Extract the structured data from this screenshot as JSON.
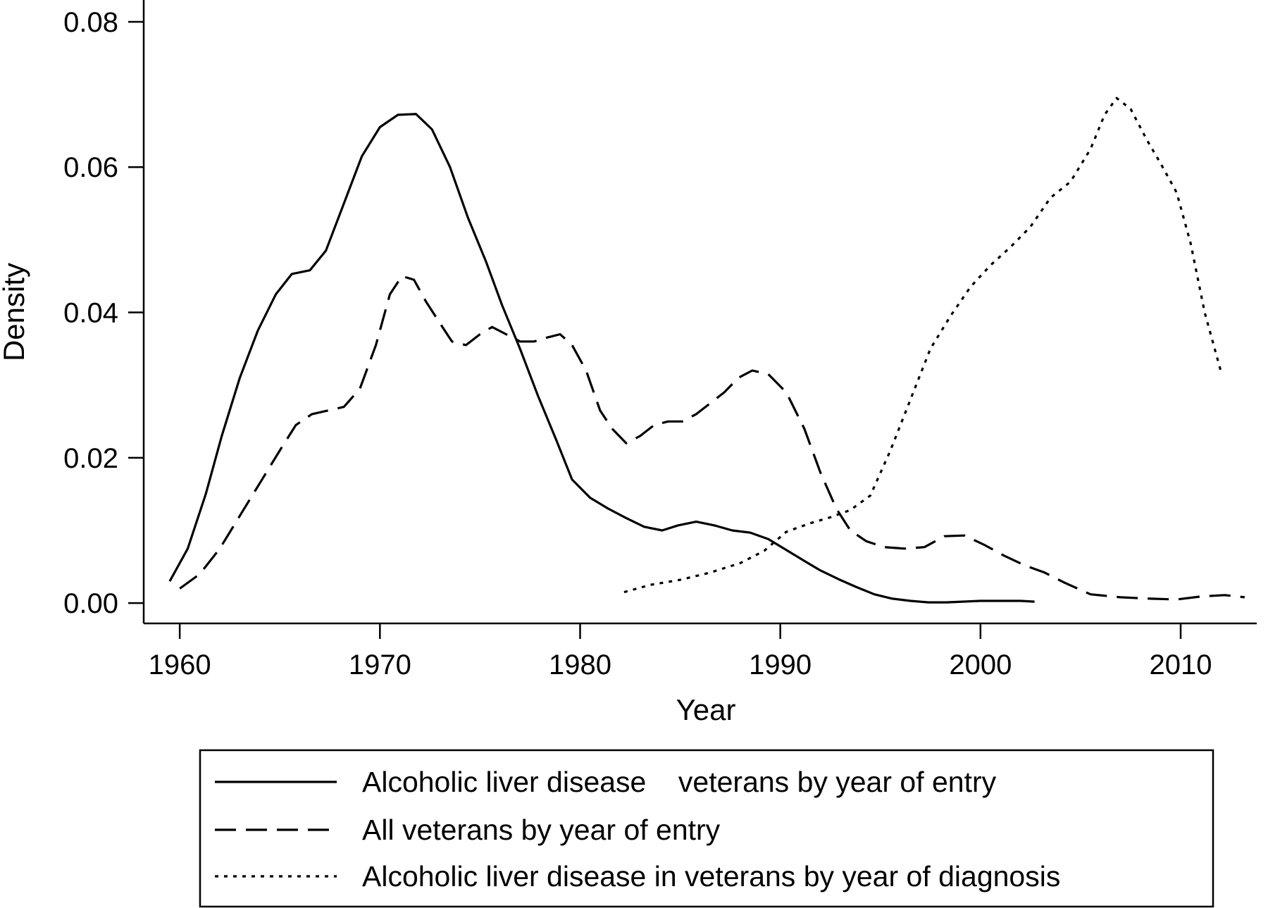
{
  "chart_data": {
    "type": "line",
    "xlabel": "Year",
    "ylabel": "Density",
    "xlim": [
      1958.2,
      2013.8
    ],
    "ylim": [
      -0.0028,
      0.083
    ],
    "xticks": [
      1960,
      1970,
      1980,
      1990,
      2000,
      2010
    ],
    "yticks": [
      0.0,
      0.02,
      0.04,
      0.06,
      0.08
    ],
    "ytick_labels": [
      "0.00",
      "0.02",
      "0.04",
      "0.06",
      "0.08"
    ],
    "grid": false,
    "legend_position": "bottom",
    "series": [
      {
        "name": "Alcoholic liver disease    veterans by year of entry",
        "style": "solid",
        "x": [
          1959.5,
          1960.4,
          1961.3,
          1962.1,
          1963.0,
          1963.9,
          1964.8,
          1965.6,
          1966.5,
          1967.3,
          1968.2,
          1969.1,
          1970.0,
          1970.9,
          1971.8,
          1972.6,
          1973.5,
          1974.4,
          1975.3,
          1976.1,
          1977.0,
          1977.9,
          1978.8,
          1979.6,
          1980.5,
          1981.4,
          1982.3,
          1983.2,
          1984.1,
          1984.9,
          1985.8,
          1986.7,
          1987.6,
          1988.5,
          1989.4,
          1990.3,
          1991.2,
          1992.0,
          1992.9,
          1993.8,
          1994.7,
          1995.6,
          1996.5,
          1997.4,
          1998.3,
          1999.1,
          2000.0,
          2001.0,
          2002.0,
          2002.7
        ],
        "y": [
          0.003,
          0.0075,
          0.015,
          0.023,
          0.031,
          0.0375,
          0.0425,
          0.0453,
          0.0458,
          0.0485,
          0.055,
          0.0615,
          0.0655,
          0.0672,
          0.0673,
          0.0652,
          0.06,
          0.053,
          0.047,
          0.041,
          0.035,
          0.0285,
          0.0225,
          0.017,
          0.0145,
          0.013,
          0.0117,
          0.0105,
          0.01,
          0.0107,
          0.0112,
          0.0107,
          0.01,
          0.0097,
          0.0088,
          0.0073,
          0.0058,
          0.0045,
          0.0033,
          0.0022,
          0.0012,
          0.0006,
          0.0003,
          0.0001,
          0.0001,
          0.0002,
          0.0003,
          0.0003,
          0.0003,
          0.0002
        ]
      },
      {
        "name": "All veterans by year of entry",
        "style": "dashed",
        "x": [
          1960.0,
          1961.0,
          1962.0,
          1963.0,
          1964.0,
          1965.0,
          1965.8,
          1966.6,
          1967.4,
          1968.2,
          1969.0,
          1969.8,
          1970.5,
          1971.1,
          1971.7,
          1972.3,
          1973.0,
          1973.6,
          1974.3,
          1975.0,
          1975.6,
          1976.3,
          1977.0,
          1977.7,
          1978.3,
          1979.0,
          1979.6,
          1980.3,
          1981.0,
          1981.6,
          1982.3,
          1983.0,
          1983.7,
          1984.4,
          1985.1,
          1985.8,
          1986.5,
          1987.2,
          1987.9,
          1988.6,
          1989.4,
          1990.3,
          1991.2,
          1992.0,
          1992.8,
          1993.5,
          1994.3,
          1995.2,
          1996.2,
          1997.2,
          1998.2,
          1999.2,
          2000.2,
          2001.2,
          2002.2,
          2003.2,
          2004.2,
          2005.5,
          2007.0,
          2008.5,
          2009.8,
          2011.0,
          2012.2,
          2013.2
        ],
        "y": [
          0.002,
          0.004,
          0.0075,
          0.012,
          0.0165,
          0.021,
          0.0245,
          0.026,
          0.0265,
          0.027,
          0.0295,
          0.0355,
          0.0425,
          0.045,
          0.0445,
          0.0415,
          0.0385,
          0.036,
          0.0355,
          0.037,
          0.038,
          0.037,
          0.036,
          0.036,
          0.0365,
          0.037,
          0.0355,
          0.032,
          0.0265,
          0.024,
          0.022,
          0.023,
          0.0245,
          0.025,
          0.025,
          0.026,
          0.0275,
          0.029,
          0.031,
          0.032,
          0.0315,
          0.029,
          0.024,
          0.018,
          0.013,
          0.01,
          0.0085,
          0.0077,
          0.0075,
          0.0077,
          0.0092,
          0.0093,
          0.008,
          0.0065,
          0.0052,
          0.0042,
          0.0028,
          0.0012,
          0.0008,
          0.0006,
          0.0005,
          0.0009,
          0.0011,
          0.0008
        ]
      },
      {
        "name": "Alcoholic liver disease in veterans by year of diagnosis",
        "style": "dotted",
        "x": [
          1982.2,
          1983.5,
          1985.0,
          1986.5,
          1988.0,
          1989.2,
          1990.3,
          1991.5,
          1992.5,
          1993.5,
          1994.5,
          1995.5,
          1996.5,
          1997.5,
          1998.5,
          1999.5,
          2000.5,
          2001.5,
          2002.5,
          2003.5,
          2004.5,
          2005.5,
          2006.2,
          2006.8,
          2007.5,
          2008.3,
          2009.0,
          2009.8,
          2010.5,
          2011.2,
          2012.0
        ],
        "y": [
          0.0015,
          0.0025,
          0.0032,
          0.0042,
          0.0055,
          0.0072,
          0.0098,
          0.011,
          0.0118,
          0.0128,
          0.0148,
          0.021,
          0.028,
          0.035,
          0.0395,
          0.0435,
          0.0465,
          0.049,
          0.0518,
          0.0558,
          0.058,
          0.0625,
          0.0672,
          0.0695,
          0.068,
          0.0638,
          0.0605,
          0.0565,
          0.0495,
          0.04,
          0.032
        ]
      }
    ]
  }
}
